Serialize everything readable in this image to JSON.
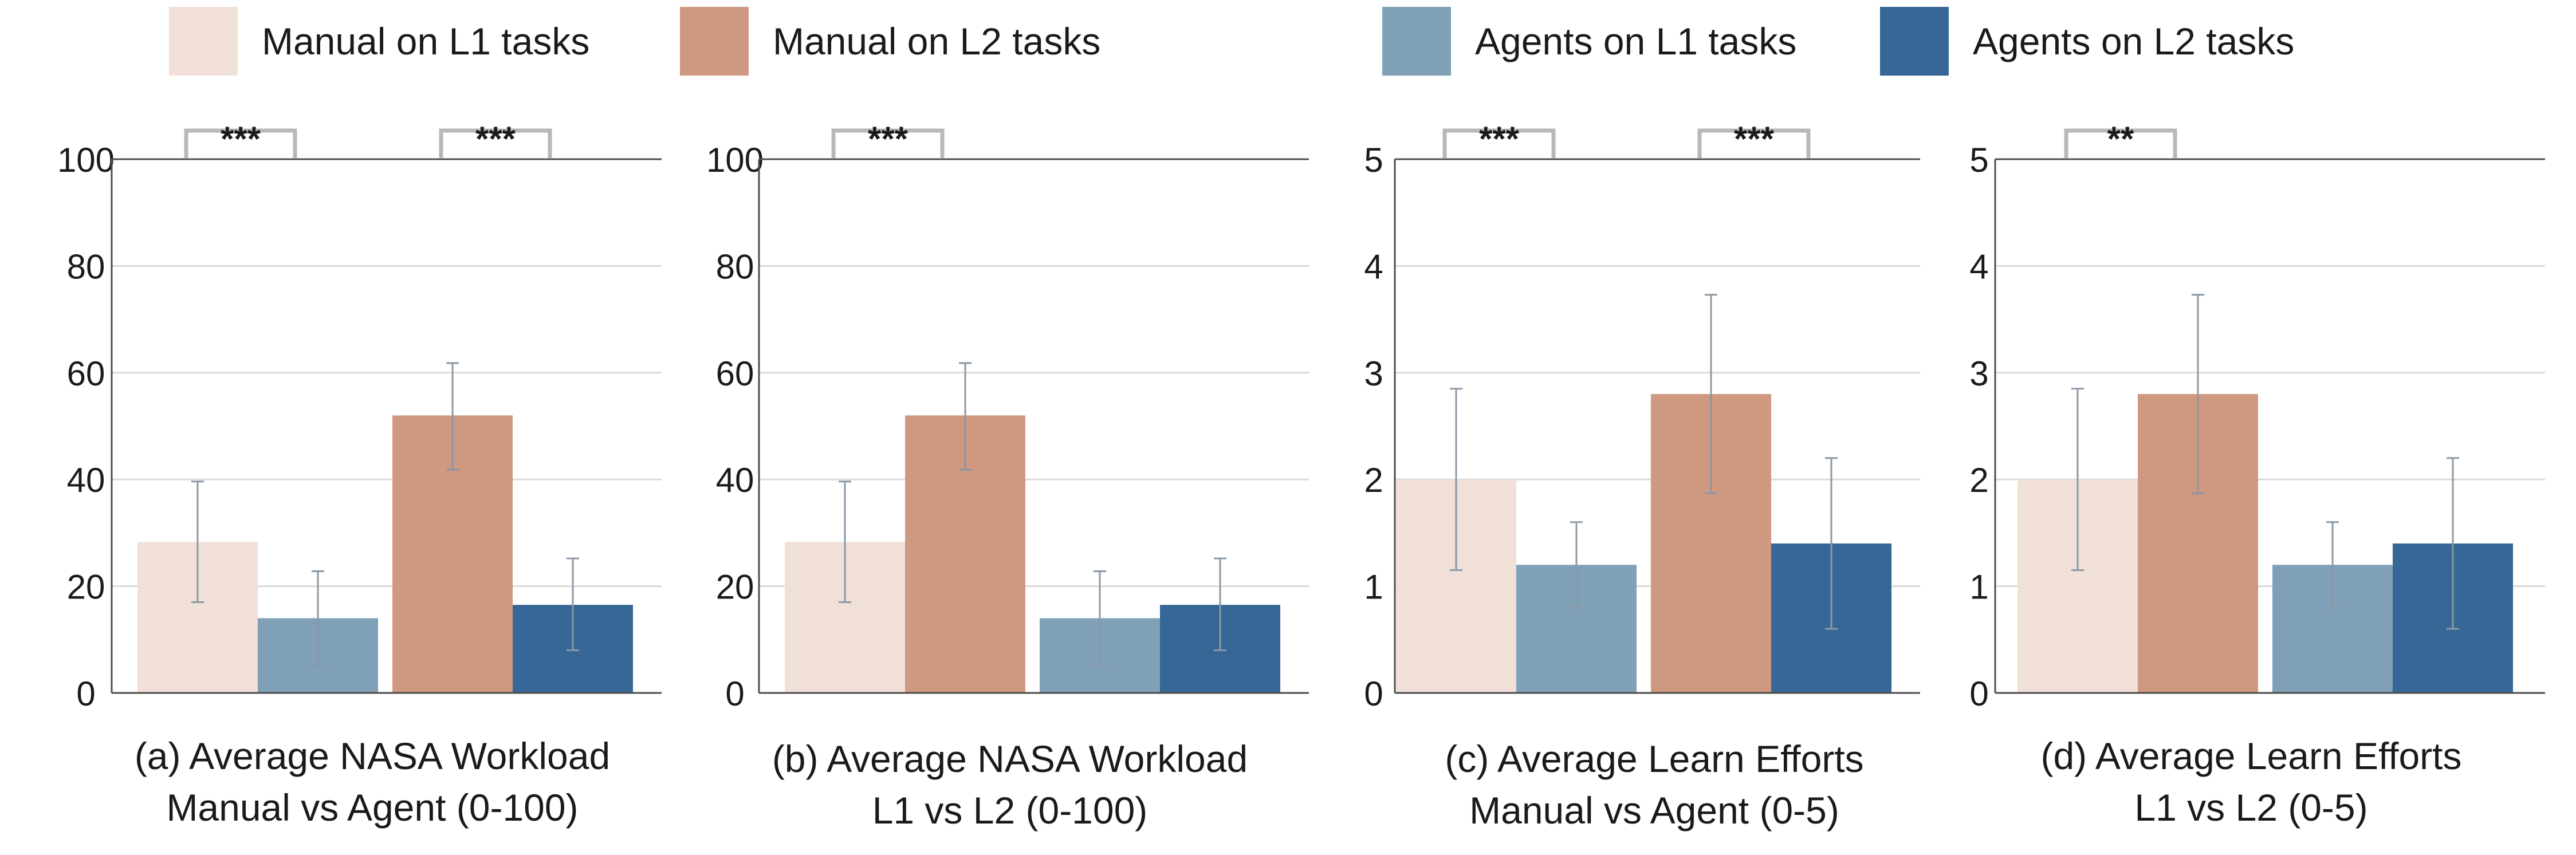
{
  "legend": [
    {
      "label": "Manual on L1 tasks",
      "color": "#f0e0d7"
    },
    {
      "label": "Manual on L2 tasks",
      "color": "#cf9880"
    },
    {
      "label": "Agents on L1 tasks",
      "color": "#7fa0b6"
    },
    {
      "label": "Agents on L2 tasks",
      "color": "#376796"
    }
  ],
  "captions": [
    {
      "line1": "(a) Average NASA Workload",
      "line2": "Manual vs Agent (0-100)"
    },
    {
      "line1": "(b) Average NASA Workload",
      "line2": "L1 vs L2 (0-100)"
    },
    {
      "line1": "(c) Average Learn Efforts",
      "line2": "Manual vs Agent (0-5)"
    },
    {
      "line1": "(d) Average Learn Efforts",
      "line2": "L1 vs L2 (0-5)"
    }
  ],
  "chart_data": [
    {
      "type": "bar",
      "title": "(a) Average NASA Workload Manual vs Agent (0-100)",
      "categories": [
        "Manual on L1 tasks",
        "Agents on L1 tasks",
        "Manual on L2 tasks",
        "Agents on L2 tasks"
      ],
      "values": [
        28.3,
        14.0,
        52.0,
        16.5
      ],
      "error_low": [
        17.0,
        5.0,
        41.8,
        8.0
      ],
      "error_high": [
        39.6,
        22.8,
        61.8,
        25.2
      ],
      "colors": [
        "#f0e0d7",
        "#7fa0b6",
        "#cf9880",
        "#376796"
      ],
      "ylim": [
        0,
        100
      ],
      "yticks": [
        "0",
        "20",
        "40",
        "60",
        "80",
        "100"
      ],
      "grid": true,
      "significance": [
        {
          "label": "***",
          "from": 0,
          "to": 1
        },
        {
          "label": "***",
          "from": 2,
          "to": 3
        }
      ]
    },
    {
      "type": "bar",
      "title": "(b) Average NASA Workload L1 vs L2 (0-100)",
      "categories": [
        "Manual on L1 tasks",
        "Manual on L2 tasks",
        "Agents on L1 tasks",
        "Agents on L2 tasks"
      ],
      "values": [
        28.3,
        52.0,
        14.0,
        16.5
      ],
      "error_low": [
        17.0,
        41.8,
        5.0,
        8.0
      ],
      "error_high": [
        39.6,
        61.8,
        22.8,
        25.2
      ],
      "colors": [
        "#f0e0d7",
        "#cf9880",
        "#7fa0b6",
        "#376796"
      ],
      "ylim": [
        0,
        100
      ],
      "yticks": [
        "0",
        "20",
        "40",
        "60",
        "80",
        "100"
      ],
      "grid": true,
      "significance": [
        {
          "label": "***",
          "from": 0,
          "to": 1
        }
      ]
    },
    {
      "type": "bar",
      "title": "(c) Average Learn Efforts Manual vs Agent (0-5)",
      "categories": [
        "Manual on L1 tasks",
        "Agents on L1 tasks",
        "Manual on L2 tasks",
        "Agents on L2 tasks"
      ],
      "values": [
        2.0,
        1.2,
        2.8,
        1.4
      ],
      "error_low": [
        1.15,
        0.8,
        1.87,
        0.6
      ],
      "error_high": [
        2.85,
        1.6,
        3.73,
        2.2
      ],
      "colors": [
        "#f0e0d7",
        "#7fa0b6",
        "#cf9880",
        "#376796"
      ],
      "ylim": [
        0,
        5
      ],
      "yticks": [
        "0",
        "1",
        "2",
        "3",
        "4",
        "5"
      ],
      "grid": true,
      "significance": [
        {
          "label": "***",
          "from": 0,
          "to": 1
        },
        {
          "label": "***",
          "from": 2,
          "to": 3
        }
      ]
    },
    {
      "type": "bar",
      "title": "(d) Average Learn Efforts L1 vs L2 (0-5)",
      "categories": [
        "Manual on L1 tasks",
        "Manual on L2 tasks",
        "Agents on L1 tasks",
        "Agents on L2 tasks"
      ],
      "values": [
        2.0,
        2.8,
        1.2,
        1.4
      ],
      "error_low": [
        1.15,
        1.87,
        0.8,
        0.6
      ],
      "error_high": [
        2.85,
        3.73,
        1.6,
        2.2
      ],
      "colors": [
        "#f0e0d7",
        "#cf9880",
        "#7fa0b6",
        "#376796"
      ],
      "ylim": [
        0,
        5
      ],
      "yticks": [
        "0",
        "1",
        "2",
        "3",
        "4",
        "5"
      ],
      "grid": true,
      "significance": [
        {
          "label": "**",
          "from": 0,
          "to": 1
        }
      ]
    }
  ]
}
